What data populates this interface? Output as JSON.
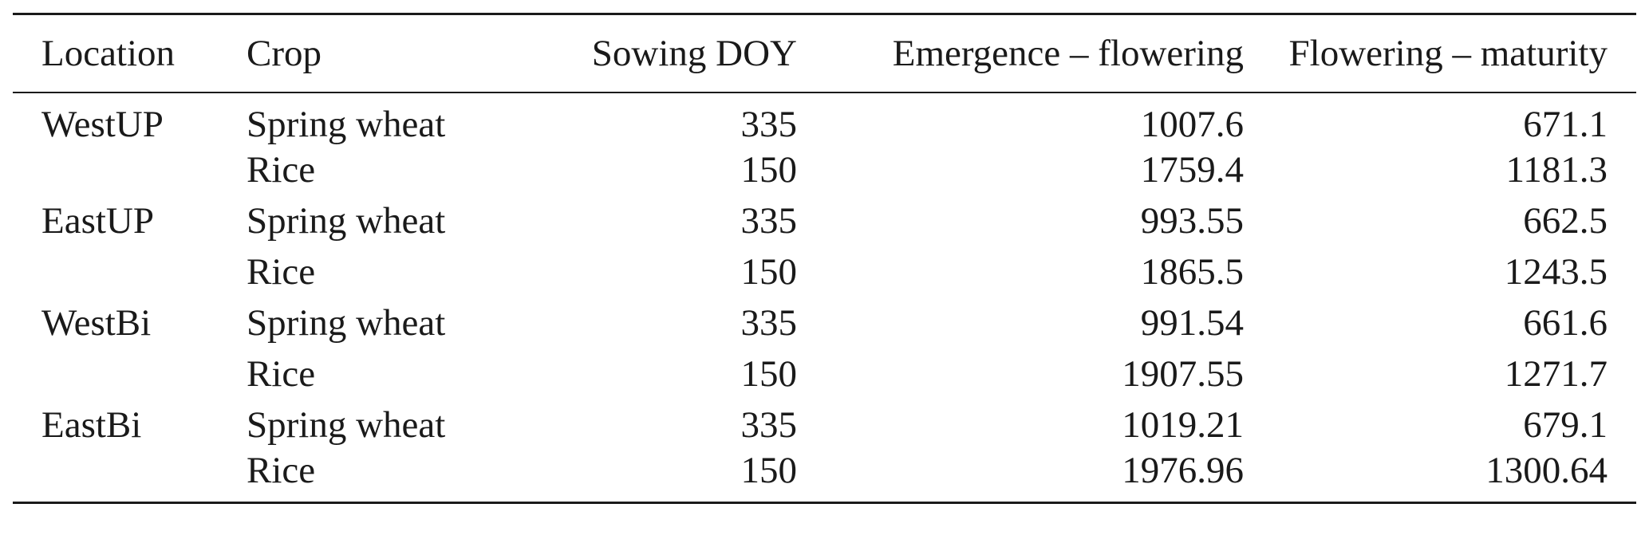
{
  "table": {
    "headers": {
      "location": "Location",
      "crop": "Crop",
      "sowing_doy": "Sowing DOY",
      "emergence_flowering": "Emergence – flowering",
      "flowering_maturity": "Flowering – maturity"
    },
    "rows": [
      {
        "location": "WestUP",
        "crop": "Spring wheat",
        "sowing_doy": "335",
        "emergence_flowering": "1007.6",
        "flowering_maturity": "671.1"
      },
      {
        "location": "",
        "crop": "Rice",
        "sowing_doy": "150",
        "emergence_flowering": "1759.4",
        "flowering_maturity": "1181.3"
      },
      {
        "location": "EastUP",
        "crop": "Spring wheat",
        "sowing_doy": "335",
        "emergence_flowering": "993.55",
        "flowering_maturity": "662.5"
      },
      {
        "location": "",
        "crop": "Rice",
        "sowing_doy": "150",
        "emergence_flowering": "1865.5",
        "flowering_maturity": "1243.5"
      },
      {
        "location": "WestBi",
        "crop": "Spring wheat",
        "sowing_doy": "335",
        "emergence_flowering": "991.54",
        "flowering_maturity": "661.6"
      },
      {
        "location": "",
        "crop": "Rice",
        "sowing_doy": "150",
        "emergence_flowering": "1907.55",
        "flowering_maturity": "1271.7"
      },
      {
        "location": "EastBi",
        "crop": "Spring wheat",
        "sowing_doy": "335",
        "emergence_flowering": "1019.21",
        "flowering_maturity": "679.1"
      },
      {
        "location": "",
        "crop": "Rice",
        "sowing_doy": "150",
        "emergence_flowering": "1976.96",
        "flowering_maturity": "1300.64"
      }
    ]
  }
}
